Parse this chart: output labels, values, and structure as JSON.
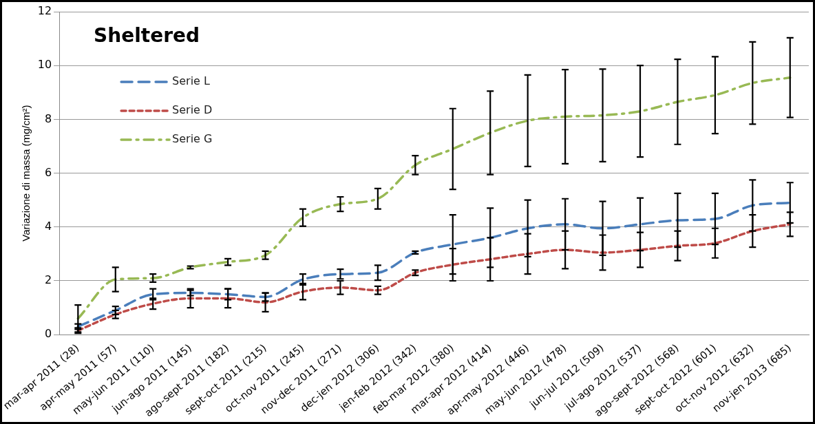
{
  "chart_data": {
    "type": "line",
    "title": "Sheltered",
    "ylabel": "Variazione di massa (mg/cm²)",
    "categories": [
      "mar-apr 2011 (28)",
      "apr-may 2011 (57)",
      "may-jun 2011 (110)",
      "jun-ago 2011 (145)",
      "ago-sept 2011 (182)",
      "sept-oct 2011 (215)",
      "oct-nov 2011 (245)",
      "nov-dec 2011 (271)",
      "dec-jen 2012 (306)",
      "jen-feb 2012 (342)",
      "feb-mar 2012 (380)",
      "mar-apr 2012 (414)",
      "apr-may 2012 (446)",
      "may-jun 2012 (478)",
      "jun-jul 2012 (509)",
      "jul-ago 2012 (537)",
      "ago-sept 2012 (568)",
      "sept-oct 2012 (601)",
      "oct-nov 2012 (632)",
      "nov-jen 2013 (685)"
    ],
    "series": [
      {
        "name": "Serie L",
        "color": "#4a7ebb",
        "line_style": "dashed",
        "values": [
          0.3,
          0.9,
          1.5,
          1.55,
          1.5,
          1.4,
          2.05,
          2.25,
          2.3,
          3.05,
          3.35,
          3.6,
          3.95,
          4.1,
          3.95,
          4.1,
          4.25,
          4.3,
          4.8,
          4.9
        ],
        "errors": [
          0.1,
          0.15,
          0.2,
          0.1,
          0.2,
          0.15,
          0.2,
          0.18,
          0.28,
          0.05,
          1.1,
          1.1,
          1.05,
          0.95,
          1.0,
          0.98,
          1.0,
          0.95,
          0.95,
          0.75
        ]
      },
      {
        "name": "Serie D",
        "color": "#be4b48",
        "line_style": "dotted",
        "values": [
          0.15,
          0.75,
          1.15,
          1.35,
          1.35,
          1.2,
          1.6,
          1.75,
          1.65,
          2.3,
          2.6,
          2.8,
          3.0,
          3.15,
          3.05,
          3.15,
          3.3,
          3.4,
          3.85,
          4.1
        ],
        "errors": [
          0.1,
          0.15,
          0.2,
          0.35,
          0.35,
          0.35,
          0.3,
          0.25,
          0.15,
          0.1,
          0.6,
          0.8,
          0.75,
          0.7,
          0.65,
          0.65,
          0.55,
          0.55,
          0.6,
          0.45
        ]
      },
      {
        "name": "Serie G",
        "color": "#98b954",
        "line_style": "dashdot",
        "values": [
          0.6,
          2.05,
          2.1,
          2.5,
          2.7,
          2.95,
          4.35,
          4.85,
          5.05,
          6.3,
          6.9,
          7.5,
          7.95,
          8.1,
          8.15,
          8.3,
          8.65,
          8.9,
          9.35,
          9.55
        ],
        "errors": [
          0.5,
          0.45,
          0.15,
          0.05,
          0.12,
          0.15,
          0.32,
          0.27,
          0.38,
          0.35,
          1.5,
          1.55,
          1.7,
          1.75,
          1.72,
          1.7,
          1.58,
          1.43,
          1.53,
          1.48
        ]
      }
    ],
    "ylim": [
      0,
      12
    ],
    "yticks": [
      0,
      2,
      4,
      6,
      8,
      10,
      12
    ],
    "grid": "y",
    "legend": "top left",
    "marker": "none"
  }
}
